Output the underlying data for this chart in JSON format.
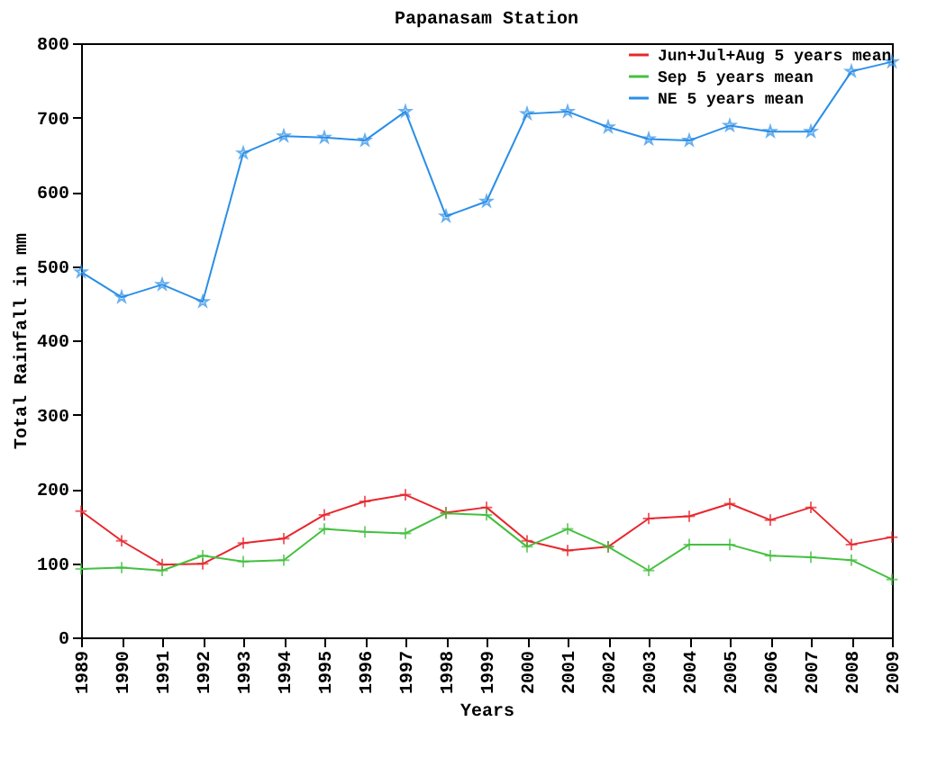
{
  "chart_data": {
    "type": "line",
    "title": "Papanasam Station",
    "xlabel": "Years",
    "ylabel": "Total Rainfall in mm",
    "categories": [
      "1989",
      "1990",
      "1991",
      "1992",
      "1993",
      "1994",
      "1995",
      "1996",
      "1997",
      "1998",
      "1999",
      "2000",
      "2001",
      "2002",
      "2003",
      "2004",
      "2005",
      "2006",
      "2007",
      "2008",
      "2009"
    ],
    "series": [
      {
        "name": "Jun+Jul+Aug 5 years mean",
        "color": "#e8262d",
        "marker": "cross",
        "values": [
          170,
          130,
          98,
          99,
          127,
          133,
          165,
          183,
          192,
          168,
          175,
          130,
          117,
          122,
          160,
          163,
          180,
          158,
          175,
          125,
          135
        ]
      },
      {
        "name": "Sep 5 years mean",
        "color": "#44c040",
        "marker": "cross",
        "values": [
          92,
          94,
          90,
          110,
          102,
          104,
          146,
          142,
          140,
          167,
          165,
          122,
          146,
          122,
          90,
          125,
          125,
          110,
          108,
          104,
          78
        ]
      },
      {
        "name": "NE 5 years mean",
        "color": "#2a8ee8",
        "marker": "star",
        "values": [
          492,
          458,
          475,
          452,
          652,
          675,
          673,
          669,
          708,
          567,
          587,
          705,
          708,
          687,
          671,
          669,
          689,
          681,
          681,
          762,
          775
        ]
      }
    ],
    "ylim": [
      0,
      800
    ],
    "yticks": [
      0,
      100,
      200,
      300,
      400,
      500,
      600,
      700,
      800
    ],
    "grid": false,
    "legend": "top right"
  }
}
